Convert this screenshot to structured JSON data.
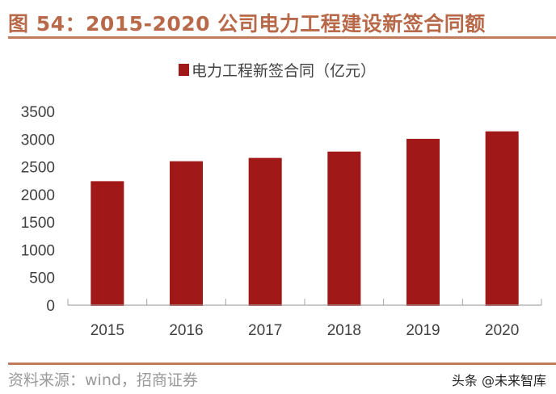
{
  "title": "图 54：2015-2020 公司电力工程建设新签合同额",
  "source": "资料来源：wind，招商证券",
  "watermark": "头条 @未来智库",
  "colors": {
    "bar": "#a01818",
    "title": "#b8694a",
    "rule": "#c07a5c",
    "axis": "#a6a6a6",
    "tick_text": "#404040"
  },
  "chart_data": {
    "type": "bar",
    "categories": [
      "2015",
      "2016",
      "2017",
      "2018",
      "2019",
      "2020"
    ],
    "series": [
      {
        "name": "电力工程新签合同（亿元）",
        "values": [
          2240,
          2600,
          2660,
          2775,
          3005,
          3140
        ]
      }
    ],
    "yticks": [
      "0",
      "500",
      "1000",
      "1500",
      "2000",
      "2500",
      "3000",
      "3500"
    ],
    "ylim": [
      0,
      3500
    ],
    "grid": false,
    "legend": "top-center"
  }
}
